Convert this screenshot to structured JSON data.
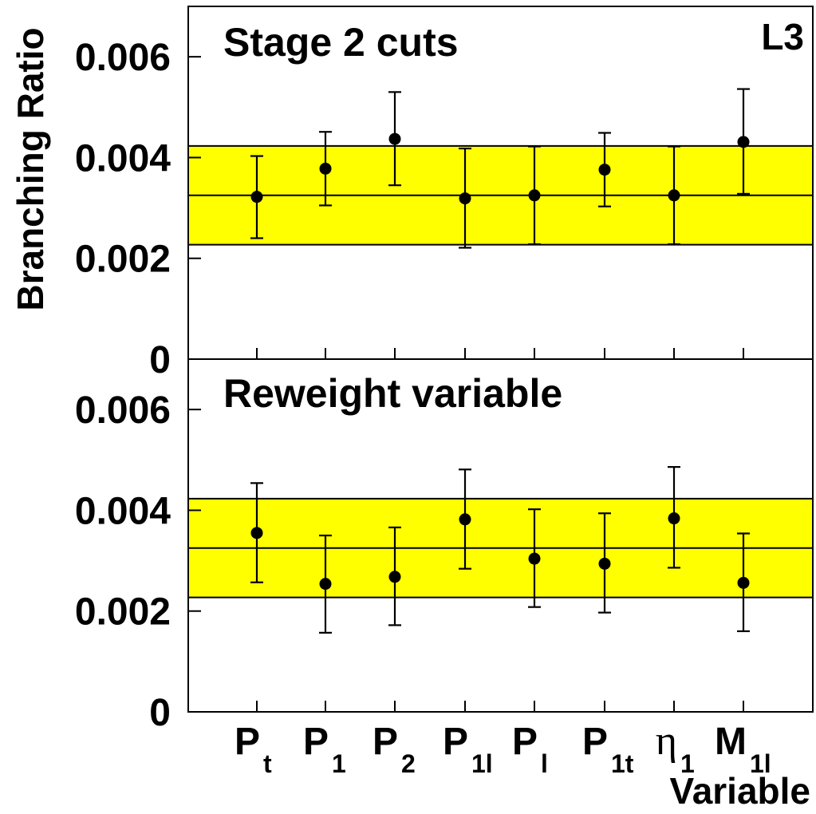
{
  "figure": {
    "experiment_label": "L3",
    "ylabel": "Branching Ratio",
    "xlabel": "Variable"
  },
  "colors": {
    "band": "#ffff00",
    "ink": "#000000"
  },
  "variables": [
    {
      "main": "P",
      "sub": "t",
      "greek": false
    },
    {
      "main": "P",
      "sub": "1",
      "greek": false
    },
    {
      "main": "P",
      "sub": "2",
      "greek": false
    },
    {
      "main": "P",
      "sub": "1l",
      "greek": false
    },
    {
      "main": "P",
      "sub": "l",
      "greek": false
    },
    {
      "main": "P",
      "sub": "1t",
      "greek": false
    },
    {
      "main": "η",
      "sub": "1",
      "greek": true
    },
    {
      "main": "M",
      "sub": "1l",
      "greek": false
    }
  ],
  "chart_data": [
    {
      "type": "scatter",
      "title": "Stage 2 cuts",
      "ylim": [
        0,
        0.007
      ],
      "yticks": [
        "0",
        "0.002",
        "0.004",
        "0.006"
      ],
      "ytick_values": [
        0,
        0.002,
        0.004,
        0.006
      ],
      "categories": [
        "Pt",
        "P1",
        "P2",
        "P1l",
        "Pl",
        "P1t",
        "η1",
        "M1l"
      ],
      "values": [
        0.00322,
        0.00378,
        0.00437,
        0.00319,
        0.00325,
        0.00376,
        0.00325,
        0.00431
      ],
      "err_low": [
        0.0024,
        0.00305,
        0.00345,
        0.00221,
        0.00228,
        0.00303,
        0.00228,
        0.00328
      ],
      "err_high": [
        0.00403,
        0.00451,
        0.0053,
        0.00418,
        0.00422,
        0.00449,
        0.00422,
        0.00536
      ],
      "band": {
        "center": 0.00325,
        "low": 0.00227,
        "high": 0.00423
      }
    },
    {
      "type": "scatter",
      "title": "Reweight variable",
      "ylim": [
        0,
        0.007
      ],
      "yticks": [
        "0",
        "0.002",
        "0.004",
        "0.006"
      ],
      "ytick_values": [
        0,
        0.002,
        0.004,
        0.006
      ],
      "categories": [
        "Pt",
        "P1",
        "P2",
        "P1l",
        "Pl",
        "P1t",
        "η1",
        "M1l"
      ],
      "values": [
        0.00355,
        0.00254,
        0.00268,
        0.00382,
        0.00304,
        0.00294,
        0.00384,
        0.00256
      ],
      "err_low": [
        0.00257,
        0.00157,
        0.00172,
        0.00284,
        0.00208,
        0.00197,
        0.00286,
        0.0016
      ],
      "err_high": [
        0.00454,
        0.0035,
        0.00366,
        0.00481,
        0.00402,
        0.00394,
        0.00486,
        0.00354
      ],
      "band": {
        "center": 0.00325,
        "low": 0.00227,
        "high": 0.00423
      }
    }
  ]
}
